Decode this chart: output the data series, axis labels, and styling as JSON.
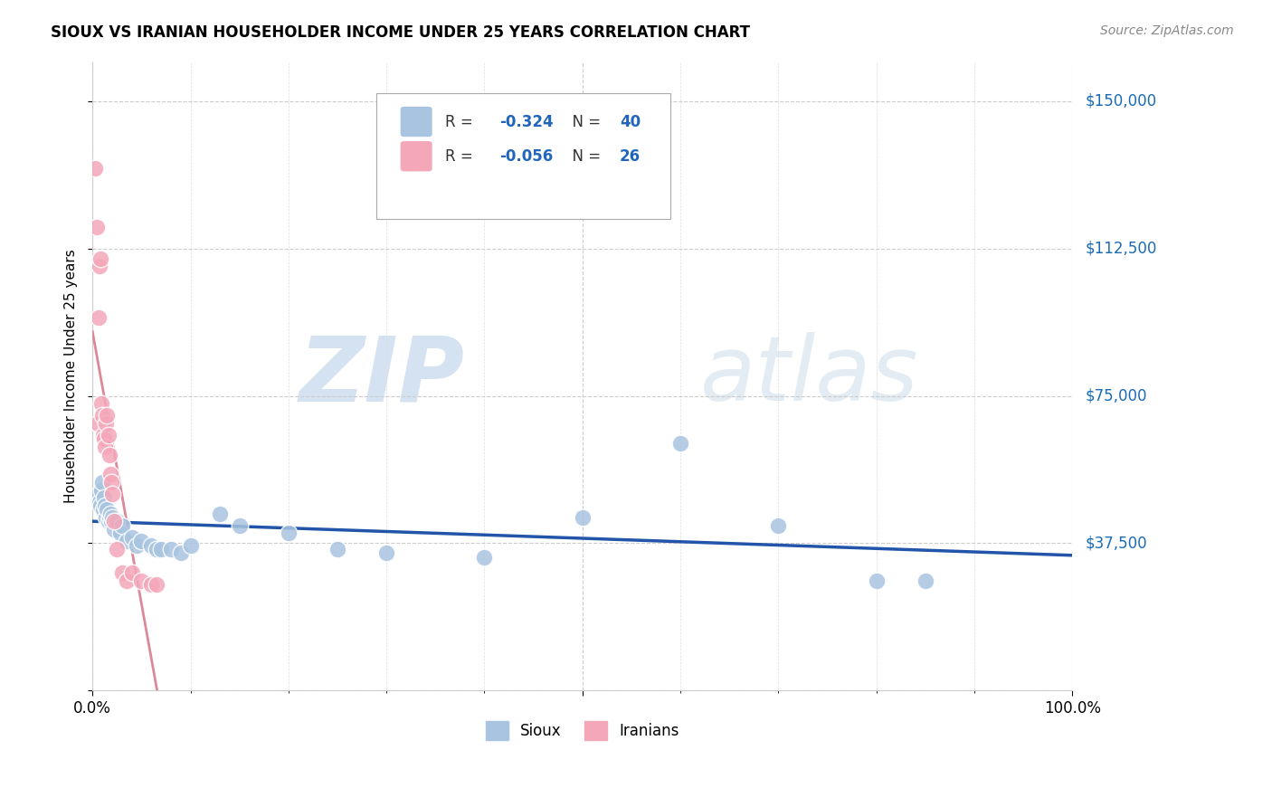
{
  "title": "SIOUX VS IRANIAN HOUSEHOLDER INCOME UNDER 25 YEARS CORRELATION CHART",
  "source": "Source: ZipAtlas.com",
  "ylabel": "Householder Income Under 25 years",
  "xlim": [
    0.0,
    1.0
  ],
  "ylim": [
    0,
    160000
  ],
  "yticks": [
    0,
    37500,
    75000,
    112500,
    150000
  ],
  "ytick_labels": [
    "",
    "$37,500",
    "$75,000",
    "$112,500",
    "$150,000"
  ],
  "xtick_labels": [
    "0.0%",
    "100.0%"
  ],
  "watermark_zip": "ZIP",
  "watermark_atlas": "atlas",
  "sioux_color": "#a8c4e0",
  "iranian_color": "#f4a7b9",
  "sioux_line_color": "#2255aa",
  "iranian_line_color": "#dd8899",
  "sioux_R": "-0.324",
  "sioux_N": "40",
  "iranian_R": "-0.056",
  "iranian_N": "26",
  "sioux_x": [
    0.006,
    0.007,
    0.008,
    0.009,
    0.01,
    0.011,
    0.012,
    0.013,
    0.014,
    0.015,
    0.016,
    0.017,
    0.018,
    0.019,
    0.02,
    0.022,
    0.025,
    0.028,
    0.03,
    0.035,
    0.04,
    0.045,
    0.05,
    0.06,
    0.065,
    0.07,
    0.08,
    0.09,
    0.1,
    0.13,
    0.15,
    0.2,
    0.25,
    0.3,
    0.4,
    0.5,
    0.6,
    0.7,
    0.8,
    0.85
  ],
  "sioux_y": [
    50000,
    48000,
    47000,
    51000,
    53000,
    46000,
    49000,
    47000,
    44000,
    46000,
    43000,
    44000,
    45000,
    43000,
    44000,
    41000,
    43000,
    40000,
    42000,
    38000,
    39000,
    37000,
    38000,
    37000,
    36000,
    36000,
    36000,
    35000,
    37000,
    45000,
    42000,
    40000,
    36000,
    35000,
    34000,
    44000,
    63000,
    42000,
    28000,
    28000
  ],
  "iranian_x": [
    0.003,
    0.004,
    0.005,
    0.006,
    0.007,
    0.008,
    0.009,
    0.01,
    0.011,
    0.012,
    0.013,
    0.014,
    0.015,
    0.016,
    0.017,
    0.018,
    0.019,
    0.02,
    0.022,
    0.025,
    0.03,
    0.035,
    0.04,
    0.05,
    0.06,
    0.065
  ],
  "iranian_y": [
    133000,
    118000,
    68000,
    95000,
    108000,
    110000,
    73000,
    70000,
    65000,
    64000,
    62000,
    68000,
    70000,
    65000,
    60000,
    55000,
    53000,
    50000,
    43000,
    36000,
    30000,
    28000,
    30000,
    28000,
    27000,
    27000
  ]
}
